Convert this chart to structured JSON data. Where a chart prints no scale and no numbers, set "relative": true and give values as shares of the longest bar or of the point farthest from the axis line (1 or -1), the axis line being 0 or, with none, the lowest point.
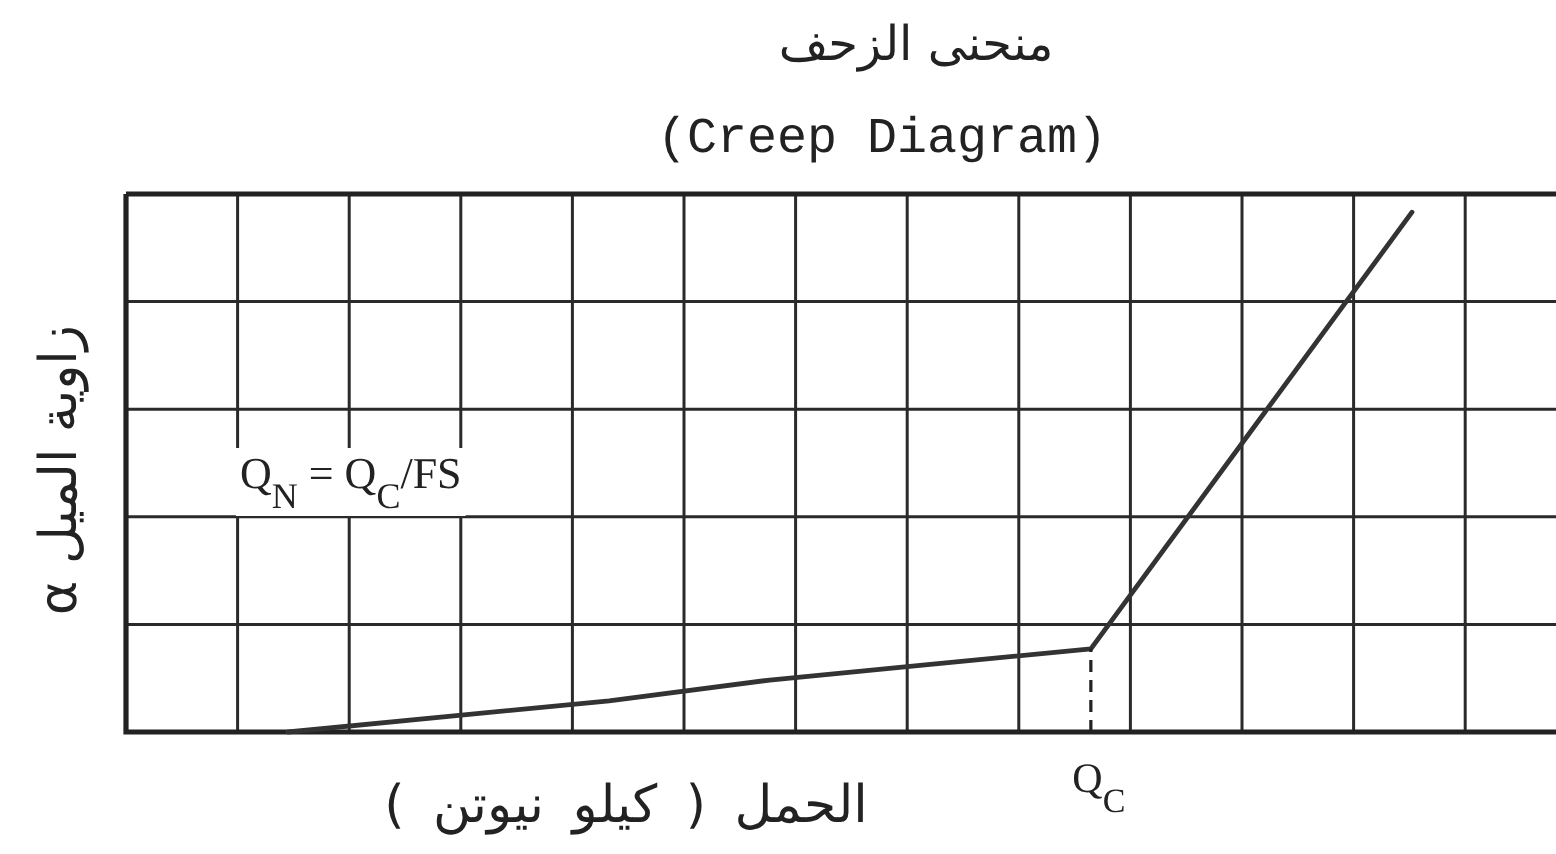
{
  "chart_data": {
    "type": "line",
    "title": "منحنى الزحف",
    "subtitle": "(Creep Diagram)",
    "xlabel": "الحمل ( كيلو نيوتن )",
    "ylabel": "زاوية الميل α",
    "annotations": [
      "Q$_{N}$ = Q$_{C}$/FS",
      {
        "text": "Q$_{C}$",
        "y": 0.16
      }
    ],
    "relative": true,
    "categories": [
      null,
      null,
      null,
      null,
      null,
      null,
      null,
      null
    ],
    "values": [
      0,
      0.03,
      0.06,
      0.1,
      0.13,
      0.16,
      0.58,
      1
    ],
    "color": "#333333",
    "grid": true
  }
}
